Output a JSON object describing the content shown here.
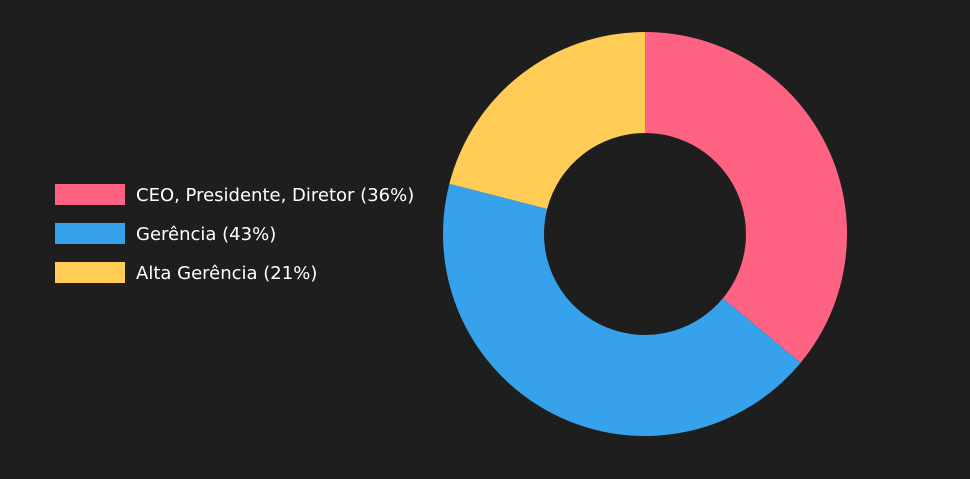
{
  "chart_data": {
    "type": "pie",
    "variant": "doughnut",
    "legend_position": "left",
    "colors": {
      "background": "#1e1e1e",
      "text": "#ffffff"
    },
    "slices": [
      {
        "label": "CEO, Presidente, Diretor (36%)",
        "value": 36,
        "color": "#ff6384"
      },
      {
        "label": "Gerência (43%)",
        "value": 43,
        "color": "#36a2eb"
      },
      {
        "label": "Alta Gerência (21%)",
        "value": 21,
        "color": "#ffcd56"
      }
    ]
  }
}
